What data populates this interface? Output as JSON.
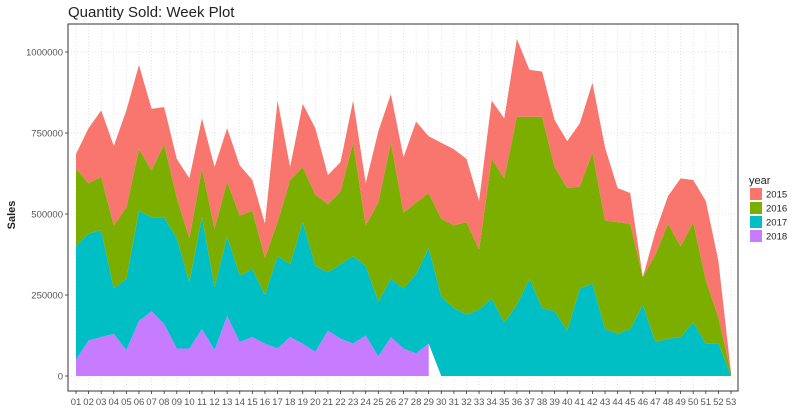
{
  "chart_data": {
    "type": "area",
    "stacked": true,
    "title": "Quantity Sold: Week Plot",
    "xlabel": "",
    "ylabel": "Sales",
    "ylim": [
      0,
      1050000
    ],
    "yticks": [
      0,
      250000,
      500000,
      750000,
      1000000
    ],
    "ytick_labels": [
      "0",
      "250000",
      "500000",
      "750000",
      "1000000"
    ],
    "grid": "dotted",
    "legend": {
      "title": "year",
      "placement": "right"
    },
    "categories": [
      "01",
      "02",
      "03",
      "04",
      "05",
      "06",
      "07",
      "08",
      "09",
      "10",
      "11",
      "12",
      "13",
      "14",
      "15",
      "16",
      "17",
      "18",
      "19",
      "20",
      "21",
      "22",
      "23",
      "24",
      "25",
      "26",
      "27",
      "28",
      "29",
      "30",
      "31",
      "32",
      "33",
      "34",
      "35",
      "36",
      "37",
      "38",
      "39",
      "40",
      "41",
      "42",
      "43",
      "44",
      "45",
      "46",
      "47",
      "48",
      "49",
      "50",
      "51",
      "52",
      "53"
    ],
    "series": [
      {
        "name": "2018",
        "color": "#C77CFF",
        "values": [
          50000,
          110000,
          120000,
          130000,
          80000,
          170000,
          200000,
          160000,
          85000,
          85000,
          145000,
          80000,
          185000,
          105000,
          120000,
          100000,
          85000,
          120000,
          100000,
          75000,
          140000,
          115000,
          100000,
          125000,
          60000,
          120000,
          85000,
          70000,
          100000,
          null,
          null,
          null,
          null,
          null,
          null,
          null,
          null,
          null,
          null,
          null,
          null,
          null,
          null,
          null,
          null,
          null,
          null,
          null,
          null,
          null,
          null,
          null,
          null
        ]
      },
      {
        "name": "2017",
        "color": "#00BFC4",
        "values": [
          350000,
          330000,
          330000,
          140000,
          220000,
          340000,
          290000,
          330000,
          340000,
          205000,
          345000,
          195000,
          245000,
          205000,
          210000,
          150000,
          285000,
          225000,
          375000,
          265000,
          180000,
          230000,
          270000,
          215000,
          170000,
          180000,
          185000,
          245000,
          295000,
          245000,
          210000,
          190000,
          205000,
          240000,
          165000,
          220000,
          300000,
          210000,
          200000,
          140000,
          270000,
          285000,
          145000,
          130000,
          145000,
          220000,
          105000,
          115000,
          120000,
          165000,
          100000,
          100000,
          0
        ]
      },
      {
        "name": "2016",
        "color": "#7CAE00",
        "values": [
          240000,
          155000,
          165000,
          195000,
          220000,
          190000,
          145000,
          225000,
          125000,
          135000,
          150000,
          180000,
          170000,
          185000,
          180000,
          115000,
          105000,
          260000,
          170000,
          220000,
          210000,
          225000,
          350000,
          125000,
          305000,
          420000,
          235000,
          220000,
          170000,
          240000,
          255000,
          285000,
          185000,
          430000,
          445000,
          580000,
          500000,
          590000,
          445000,
          440000,
          315000,
          405000,
          335000,
          345000,
          325000,
          85000,
          270000,
          355000,
          280000,
          310000,
          195000,
          80000,
          10000
        ]
      },
      {
        "name": "2015",
        "color": "#F8766D",
        "values": [
          45000,
          170000,
          205000,
          245000,
          300000,
          260000,
          190000,
          115000,
          120000,
          185000,
          155000,
          190000,
          165000,
          155000,
          95000,
          105000,
          375000,
          40000,
          195000,
          205000,
          90000,
          90000,
          130000,
          130000,
          220000,
          150000,
          170000,
          250000,
          175000,
          235000,
          235000,
          195000,
          150000,
          180000,
          185000,
          240000,
          145000,
          140000,
          145000,
          145000,
          195000,
          215000,
          225000,
          105000,
          95000,
          0,
          70000,
          85000,
          210000,
          130000,
          245000,
          175000,
          0
        ]
      }
    ]
  }
}
